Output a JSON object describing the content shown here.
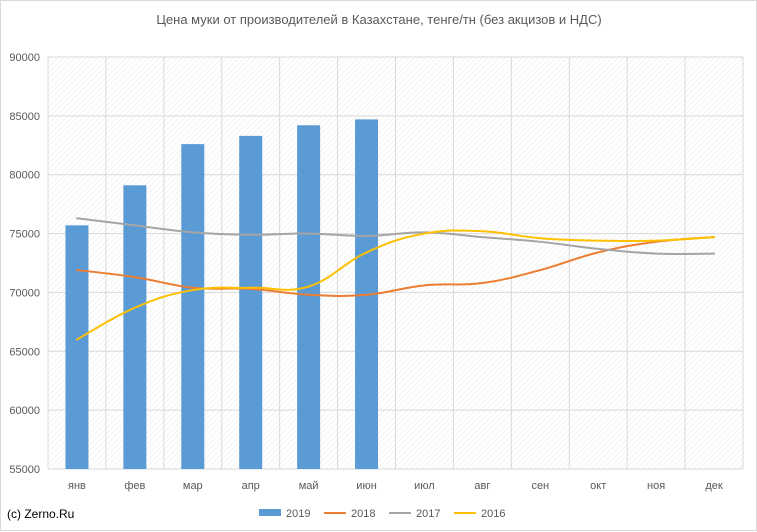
{
  "chart_data": {
    "type": "bar+line",
    "title": "Цена муки от производителей в Казахстане, тенге/тн (без акцизов и НДС)",
    "categories": [
      "янв",
      "фев",
      "мар",
      "апр",
      "май",
      "июн",
      "июл",
      "авг",
      "сен",
      "окт",
      "ноя",
      "дек"
    ],
    "ylim": [
      55000,
      90000
    ],
    "yticks": [
      "55000",
      "60000",
      "65000",
      "70000",
      "75000",
      "80000",
      "85000",
      "90000"
    ],
    "grid": true,
    "legend_position": "bottom",
    "series": [
      {
        "name": "2019",
        "type": "bar",
        "color": "#5b9bd5",
        "values": [
          75700,
          79100,
          82600,
          83300,
          84200,
          84700,
          null,
          null,
          null,
          null,
          null,
          null
        ]
      },
      {
        "name": "2018",
        "type": "line",
        "color": "#ed7d31",
        "values": [
          71900,
          71300,
          70400,
          70300,
          69800,
          69800,
          70600,
          70800,
          71900,
          73400,
          74300,
          74700
        ]
      },
      {
        "name": "2017",
        "type": "line",
        "color": "#a5a5a5",
        "values": [
          76300,
          75700,
          75100,
          74900,
          75000,
          74800,
          75100,
          74700,
          74300,
          73700,
          73300,
          73300
        ]
      },
      {
        "name": "2016",
        "type": "line",
        "color": "#ffc000",
        "values": [
          66000,
          68700,
          70200,
          70400,
          70500,
          73400,
          75000,
          75200,
          74600,
          74400,
          74400,
          74700
        ]
      }
    ]
  },
  "footer": {
    "copyright": "(c) Zerno.Ru"
  }
}
